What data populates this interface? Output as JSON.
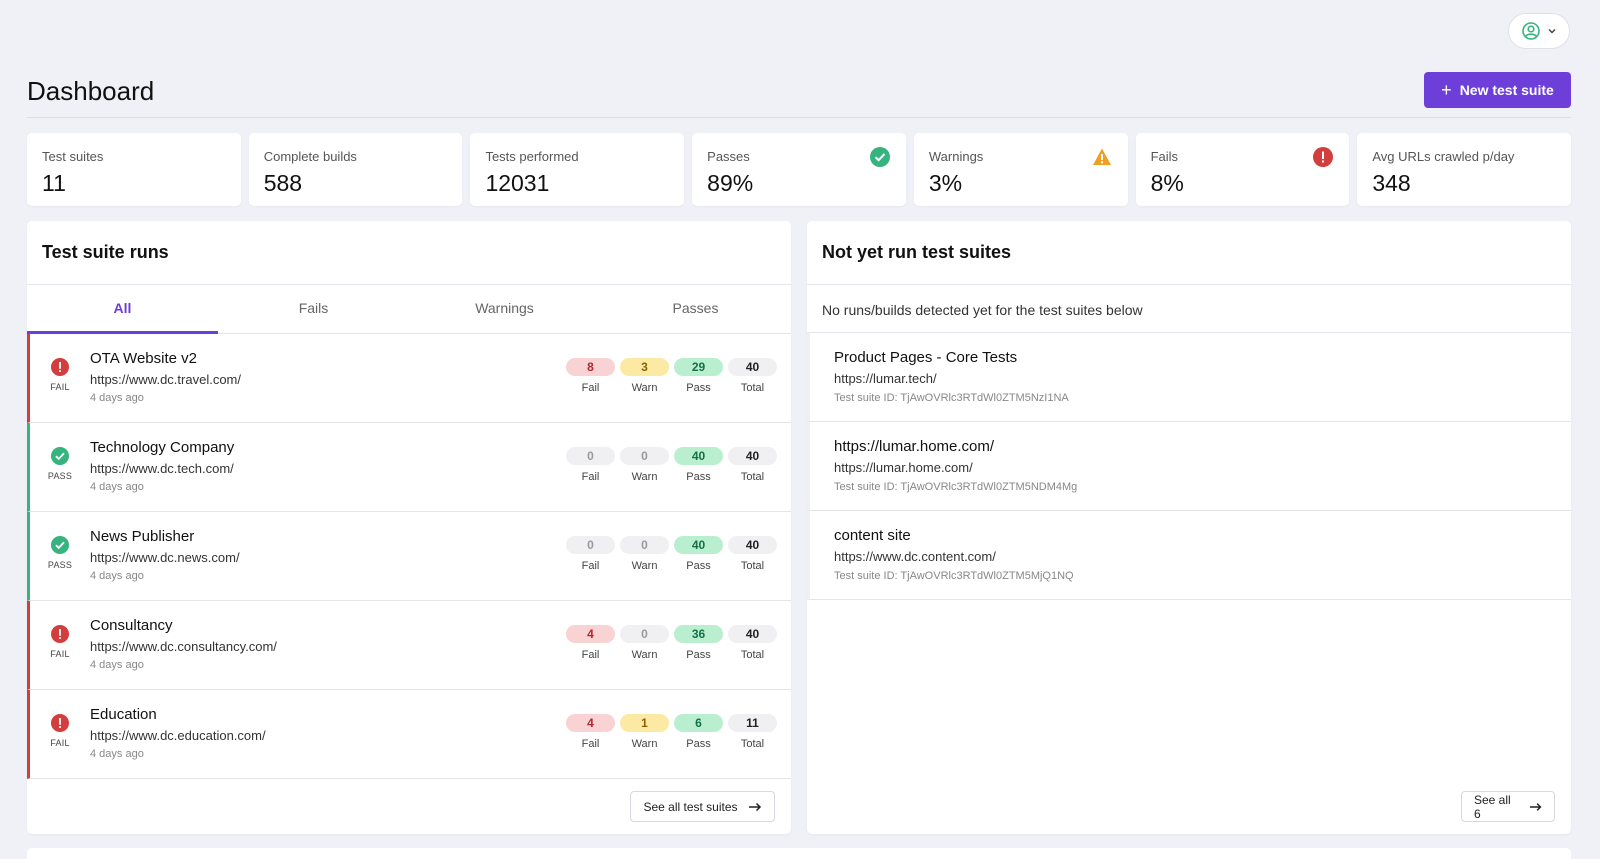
{
  "header": {
    "title": "Dashboard",
    "new_button_label": "New test suite"
  },
  "stats": [
    {
      "label": "Test suites",
      "value": "11"
    },
    {
      "label": "Complete builds",
      "value": "588"
    },
    {
      "label": "Tests performed",
      "value": "12031"
    },
    {
      "label": "Passes",
      "value": "89%",
      "icon": "check-circle-icon"
    },
    {
      "label": "Warnings",
      "value": "3%",
      "icon": "warning-triangle-icon"
    },
    {
      "label": "Fails",
      "value": "8%",
      "icon": "error-circle-icon"
    },
    {
      "label": "Avg URLs crawled p/day",
      "value": "348"
    }
  ],
  "runs_panel": {
    "title": "Test suite runs",
    "tabs": [
      "All",
      "Fails",
      "Warnings",
      "Passes"
    ],
    "active_tab": "All",
    "metric_labels": {
      "fail": "Fail",
      "warn": "Warn",
      "pass": "Pass",
      "total": "Total"
    },
    "rows": [
      {
        "status": "FAIL",
        "name": "OTA Website v2",
        "url": "https://www.dc.travel.com/",
        "date": "4 days ago",
        "fail": "8",
        "warn": "3",
        "pass": "29",
        "total": "40"
      },
      {
        "status": "PASS",
        "name": "Technology Company",
        "url": "https://www.dc.tech.com/",
        "date": "4 days ago",
        "fail": "0",
        "warn": "0",
        "pass": "40",
        "total": "40"
      },
      {
        "status": "PASS",
        "name": "News Publisher",
        "url": "https://www.dc.news.com/",
        "date": "4 days ago",
        "fail": "0",
        "warn": "0",
        "pass": "40",
        "total": "40"
      },
      {
        "status": "FAIL",
        "name": "Consultancy",
        "url": "https://www.dc.consultancy.com/",
        "date": "4 days ago",
        "fail": "4",
        "warn": "0",
        "pass": "36",
        "total": "40"
      },
      {
        "status": "FAIL",
        "name": "Education",
        "url": "https://www.dc.education.com/",
        "date": "4 days ago",
        "fail": "4",
        "warn": "1",
        "pass": "6",
        "total": "11"
      }
    ],
    "see_all_label": "See all test suites"
  },
  "not_run_panel": {
    "title": "Not yet run test suites",
    "notice": "No runs/builds detected yet for the test suites below",
    "rows": [
      {
        "name": "Product Pages - Core Tests",
        "url": "https://lumar.tech/",
        "suite_id": "Test suite ID: TjAwOVRlc3RTdWl0ZTM5NzI1NA"
      },
      {
        "name": "https://lumar.home.com/",
        "url": "https://lumar.home.com/",
        "suite_id": "Test suite ID: TjAwOVRlc3RTdWl0ZTM5NDM4Mg"
      },
      {
        "name": "content site",
        "url": "https://www.dc.content.com/",
        "suite_id": "Test suite ID: TjAwOVRlc3RTdWl0ZTM5MjQ1NQ"
      }
    ],
    "see_all_label": "See all 6"
  },
  "colors": {
    "accent": "#6d3fd8",
    "fail": "#d23d3d",
    "pass": "#36b37e",
    "warn": "#f0a020"
  }
}
